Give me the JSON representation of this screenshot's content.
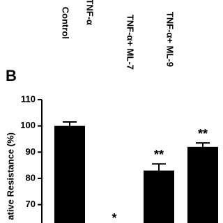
{
  "chart_data": {
    "type": "bar",
    "panel_label": "B",
    "y_label": "ative Resistance (%)",
    "categories": [
      "Control",
      "TNF-α",
      "TNF-α+ ML-7",
      "TNF-α+ ML-9"
    ],
    "values": [
      100,
      null,
      83,
      92
    ],
    "errors": [
      1.5,
      null,
      2.5,
      1.5
    ],
    "significance": [
      null,
      "*",
      "**",
      "**"
    ],
    "color": "#000000",
    "ylim": [
      63,
      110
    ],
    "yticks": [
      70,
      80,
      90,
      100,
      110
    ]
  }
}
